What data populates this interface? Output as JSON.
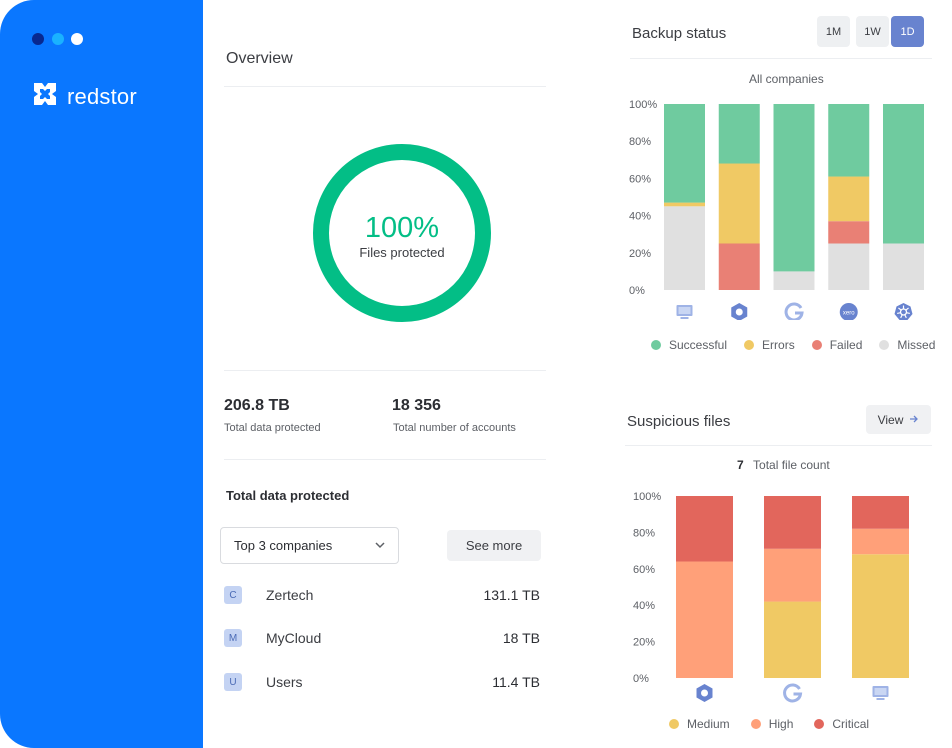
{
  "window": {
    "dots": [
      {
        "color": "#08288f"
      },
      {
        "color": "#1ab2ff"
      },
      {
        "color": "#ffffff"
      }
    ]
  },
  "brand": {
    "name": "redstor",
    "sidebar_color": "#0a77ff"
  },
  "overview": {
    "title": "Overview",
    "donut": {
      "value": "100%",
      "label": "Files protected",
      "fraction": 1.0,
      "color": "#03be86"
    },
    "stats": [
      {
        "value": "206.8 TB",
        "label": "Total data protected"
      },
      {
        "value": "18 356",
        "label": "Total number of accounts"
      }
    ],
    "section_title": "Total data protected",
    "dropdown": {
      "selected": "Top 3 companies"
    },
    "see_more_label": "See more",
    "companies": [
      {
        "badge": "C",
        "name": "Zertech",
        "value": "131.1 TB"
      },
      {
        "badge": "M",
        "name": "MyCloud",
        "value": "18 TB"
      },
      {
        "badge": "U",
        "name": "Users",
        "value": "11.4 TB"
      }
    ]
  },
  "backup": {
    "title": "Backup status",
    "ranges": [
      {
        "label": "1M",
        "active": false
      },
      {
        "label": "1W",
        "active": false
      },
      {
        "label": "1D",
        "active": true
      }
    ],
    "subtitle": "All companies"
  },
  "suspicious": {
    "title": "Suspicious files",
    "view_label": "View",
    "count": "7",
    "count_label": "Total file count"
  },
  "chart_data": [
    {
      "type": "bar",
      "stacked": true,
      "title": "Backup status",
      "subtitle": "All companies",
      "categories": [
        "monitor-icon",
        "hexagon-icon",
        "google-icon",
        "xero-icon",
        "kubernetes-icon"
      ],
      "ylim": [
        0,
        100
      ],
      "yticks": [
        "100%",
        "80%",
        "60%",
        "40%",
        "20%",
        "0%"
      ],
      "grid": false,
      "legend": "bottom",
      "series": [
        {
          "name": "Missed",
          "color": "#e0e0e0",
          "values": [
            45,
            0,
            10,
            25,
            25
          ]
        },
        {
          "name": "Failed",
          "color": "#e98075",
          "values": [
            0,
            25,
            0,
            12,
            0
          ]
        },
        {
          "name": "Errors",
          "color": "#f0c964",
          "values": [
            2,
            43,
            0,
            24,
            0
          ]
        },
        {
          "name": "Successful",
          "color": "#6fcb9f",
          "values": [
            53,
            32,
            90,
            39,
            75
          ]
        }
      ]
    },
    {
      "type": "bar",
      "stacked": true,
      "title": "Suspicious files",
      "categories": [
        "hexagon-icon",
        "google-icon",
        "monitor-icon"
      ],
      "ylim": [
        0,
        100
      ],
      "yticks": [
        "100%",
        "80%",
        "60%",
        "40%",
        "20%",
        "0%"
      ],
      "grid": false,
      "legend": "bottom",
      "series": [
        {
          "name": "Medium",
          "color": "#f0c964",
          "values": [
            0,
            42,
            68
          ]
        },
        {
          "name": "High",
          "color": "#ffa079",
          "values": [
            64,
            29,
            14
          ]
        },
        {
          "name": "Critical",
          "color": "#e2665c",
          "values": [
            36,
            29,
            18
          ]
        }
      ]
    }
  ]
}
